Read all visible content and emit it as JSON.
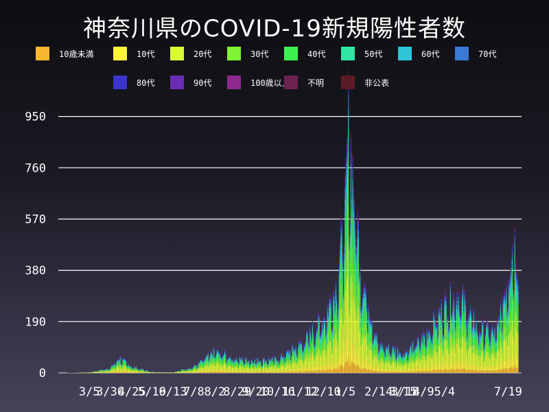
{
  "chart_data": {
    "type": "bar",
    "stacked": true,
    "title": "神奈川県のCOVID-19新規陽性者数",
    "xlabel": "",
    "ylabel": "",
    "ylim": [
      0,
      1000
    ],
    "yticks": [
      0,
      190,
      380,
      570,
      760,
      950
    ],
    "grid": true,
    "x_start": "2020-02-01",
    "x_end": "2021-07-31",
    "x_tick_labels": [
      "3/5",
      "3/30",
      "4/25",
      "5/19",
      "6/13",
      "7/8",
      "8/2",
      "8/29",
      "9/20",
      "10/16",
      "11/12",
      "12/10",
      "1/5",
      "2/14",
      "3/18",
      "3/15",
      "4/9",
      "5/4",
      "7/19"
    ],
    "x_tick_dates": [
      "2020-03-05",
      "2020-03-30",
      "2020-04-25",
      "2020-05-19",
      "2020-06-13",
      "2020-07-08",
      "2020-08-02",
      "2020-08-29",
      "2020-09-20",
      "2020-10-16",
      "2020-11-12",
      "2020-12-10",
      "2021-01-05",
      "2021-02-14",
      "2021-03-18",
      "2021-03-15",
      "2021-04-09",
      "2021-05-04",
      "2021-07-19"
    ],
    "series": [
      {
        "name": "10歳未満",
        "color": "#f7b731"
      },
      {
        "name": "10代",
        "color": "#fff33b"
      },
      {
        "name": "20代",
        "color": "#dcfa34"
      },
      {
        "name": "30代",
        "color": "#7ff534"
      },
      {
        "name": "40代",
        "color": "#3df150"
      },
      {
        "name": "50代",
        "color": "#30e6a2"
      },
      {
        "name": "60代",
        "color": "#2dc6d9"
      },
      {
        "name": "70代",
        "color": "#3a7ad6"
      },
      {
        "name": "80代",
        "color": "#3a35cc"
      },
      {
        "name": "90代",
        "color": "#6a2cb3"
      },
      {
        "name": "100歳以上",
        "color": "#8e2a8e"
      },
      {
        "name": "不明",
        "color": "#6b2250"
      },
      {
        "name": "非公表",
        "color": "#5b1b24"
      }
    ],
    "composition": [
      0.05,
      0.1,
      0.26,
      0.16,
      0.14,
      0.11,
      0.06,
      0.05,
      0.035,
      0.02,
      0.002,
      0.005,
      0.018
    ],
    "daily_totals_anchors": [
      [
        "2020-02-01",
        0
      ],
      [
        "2020-03-05",
        3
      ],
      [
        "2020-03-30",
        20
      ],
      [
        "2020-04-10",
        60
      ],
      [
        "2020-04-25",
        25
      ],
      [
        "2020-05-19",
        4
      ],
      [
        "2020-06-13",
        3
      ],
      [
        "2020-07-08",
        25
      ],
      [
        "2020-08-02",
        85
      ],
      [
        "2020-08-29",
        55
      ],
      [
        "2020-09-20",
        50
      ],
      [
        "2020-10-16",
        55
      ],
      [
        "2020-11-12",
        110
      ],
      [
        "2020-12-10",
        210
      ],
      [
        "2020-12-25",
        330
      ],
      [
        "2021-01-05",
        600
      ],
      [
        "2021-01-09",
        940
      ],
      [
        "2021-01-16",
        700
      ],
      [
        "2021-01-25",
        380
      ],
      [
        "2021-02-14",
        110
      ],
      [
        "2021-03-18",
        80
      ],
      [
        "2021-04-09",
        140
      ],
      [
        "2021-05-04",
        260
      ],
      [
        "2021-05-20",
        310
      ],
      [
        "2021-06-15",
        170
      ],
      [
        "2021-07-05",
        160
      ],
      [
        "2021-07-19",
        390
      ],
      [
        "2021-07-26",
        520
      ],
      [
        "2021-07-31",
        420
      ]
    ]
  }
}
